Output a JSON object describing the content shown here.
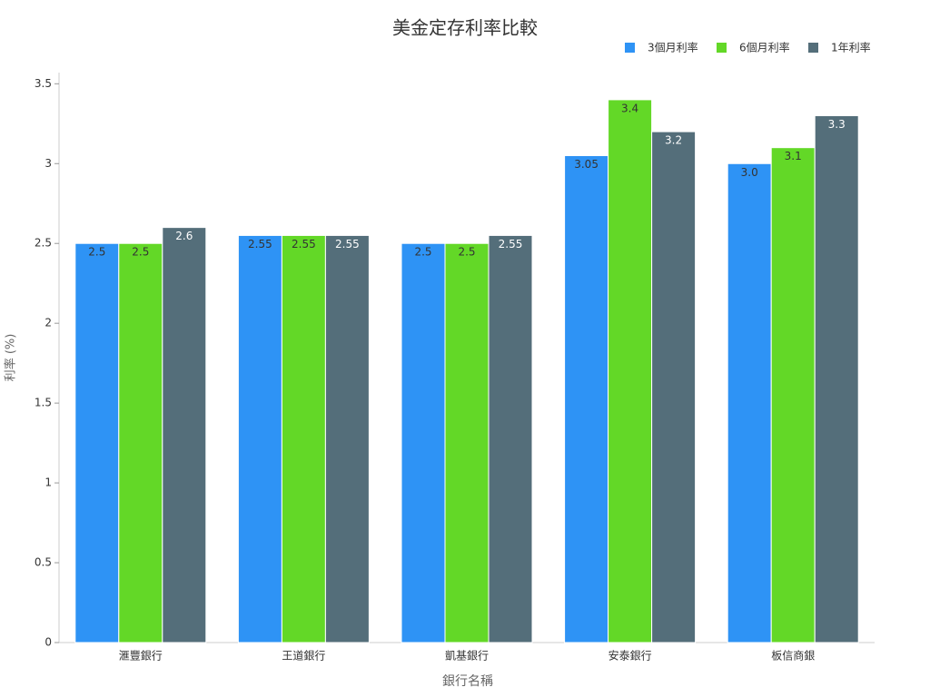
{
  "chart_data": {
    "type": "bar",
    "title": "美金定存利率比較",
    "x_label": "銀行名稱",
    "y_label": "利率 (%)",
    "categories": [
      "滙豐銀行",
      "王道銀行",
      "凱基銀行",
      "安泰銀行",
      "板信商銀"
    ],
    "series": [
      {
        "name": "3個月利率",
        "color": "#2e93f5",
        "values": [
          2.5,
          2.55,
          2.5,
          3.05,
          3.0
        ],
        "value_labels": [
          "2.5",
          "2.55",
          "2.5",
          "3.05",
          "3.0"
        ]
      },
      {
        "name": "6個月利率",
        "color": "#63d827",
        "values": [
          2.5,
          2.55,
          2.5,
          3.4,
          3.1
        ]
      },
      {
        "name": "1年利率",
        "color": "#546e7a",
        "values": [
          2.6,
          2.55,
          2.55,
          3.2,
          3.3
        ]
      }
    ],
    "ylim": [
      0,
      3.57
    ],
    "yticks": [
      0,
      0.5,
      1,
      1.5,
      2,
      2.5,
      3,
      3.5
    ],
    "grid": false,
    "legend": "top-right"
  }
}
